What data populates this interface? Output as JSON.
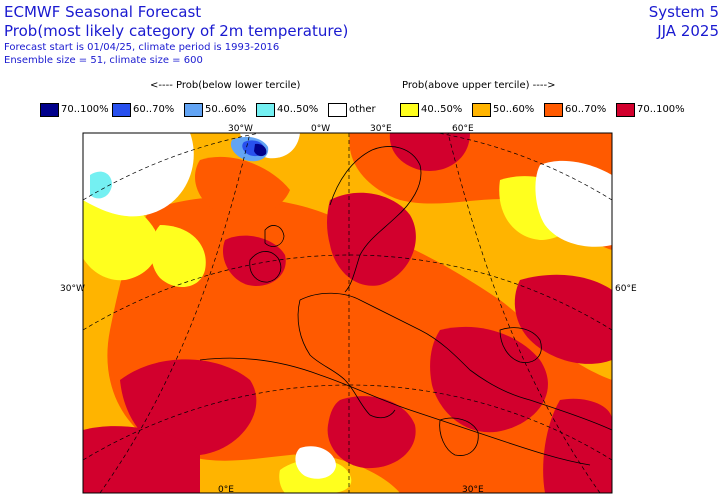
{
  "title": {
    "line1": "ECMWF Seasonal Forecast",
    "line2": "Prob(most likely category of 2m temperature)",
    "line3": "Forecast start is 01/04/25, climate period is 1993-2016",
    "line4": "Ensemble size = 51, climate size = 600"
  },
  "system": {
    "name": "System 5",
    "season": "JJA 2025"
  },
  "legend": {
    "below_header": "<---- Prob(below lower tercile)",
    "above_header": "Prob(above upper tercile) ---->",
    "items": [
      {
        "label": "70..100%",
        "color": "#00008b"
      },
      {
        "label": "60..70%",
        "color": "#2850ee"
      },
      {
        "label": "50..60%",
        "color": "#62a4f4"
      },
      {
        "label": "40..50%",
        "color": "#74f0f2"
      },
      {
        "label": "other",
        "color": "#ffffff"
      },
      {
        "label": "40..50%",
        "color": "#ffff1e"
      },
      {
        "label": "50..60%",
        "color": "#ffb400"
      },
      {
        "label": "60..70%",
        "color": "#ff5a00"
      },
      {
        "label": "70..100%",
        "color": "#d2002d"
      }
    ]
  },
  "map_labels": {
    "top_30w": "30°W",
    "top_0w": "0°W",
    "top_30e": "30°E",
    "top_60e": "60°E",
    "left_30w": "30°W",
    "right_60e": "60°E",
    "bottom_0e": "0°E",
    "bottom_30e": "30°E"
  }
}
